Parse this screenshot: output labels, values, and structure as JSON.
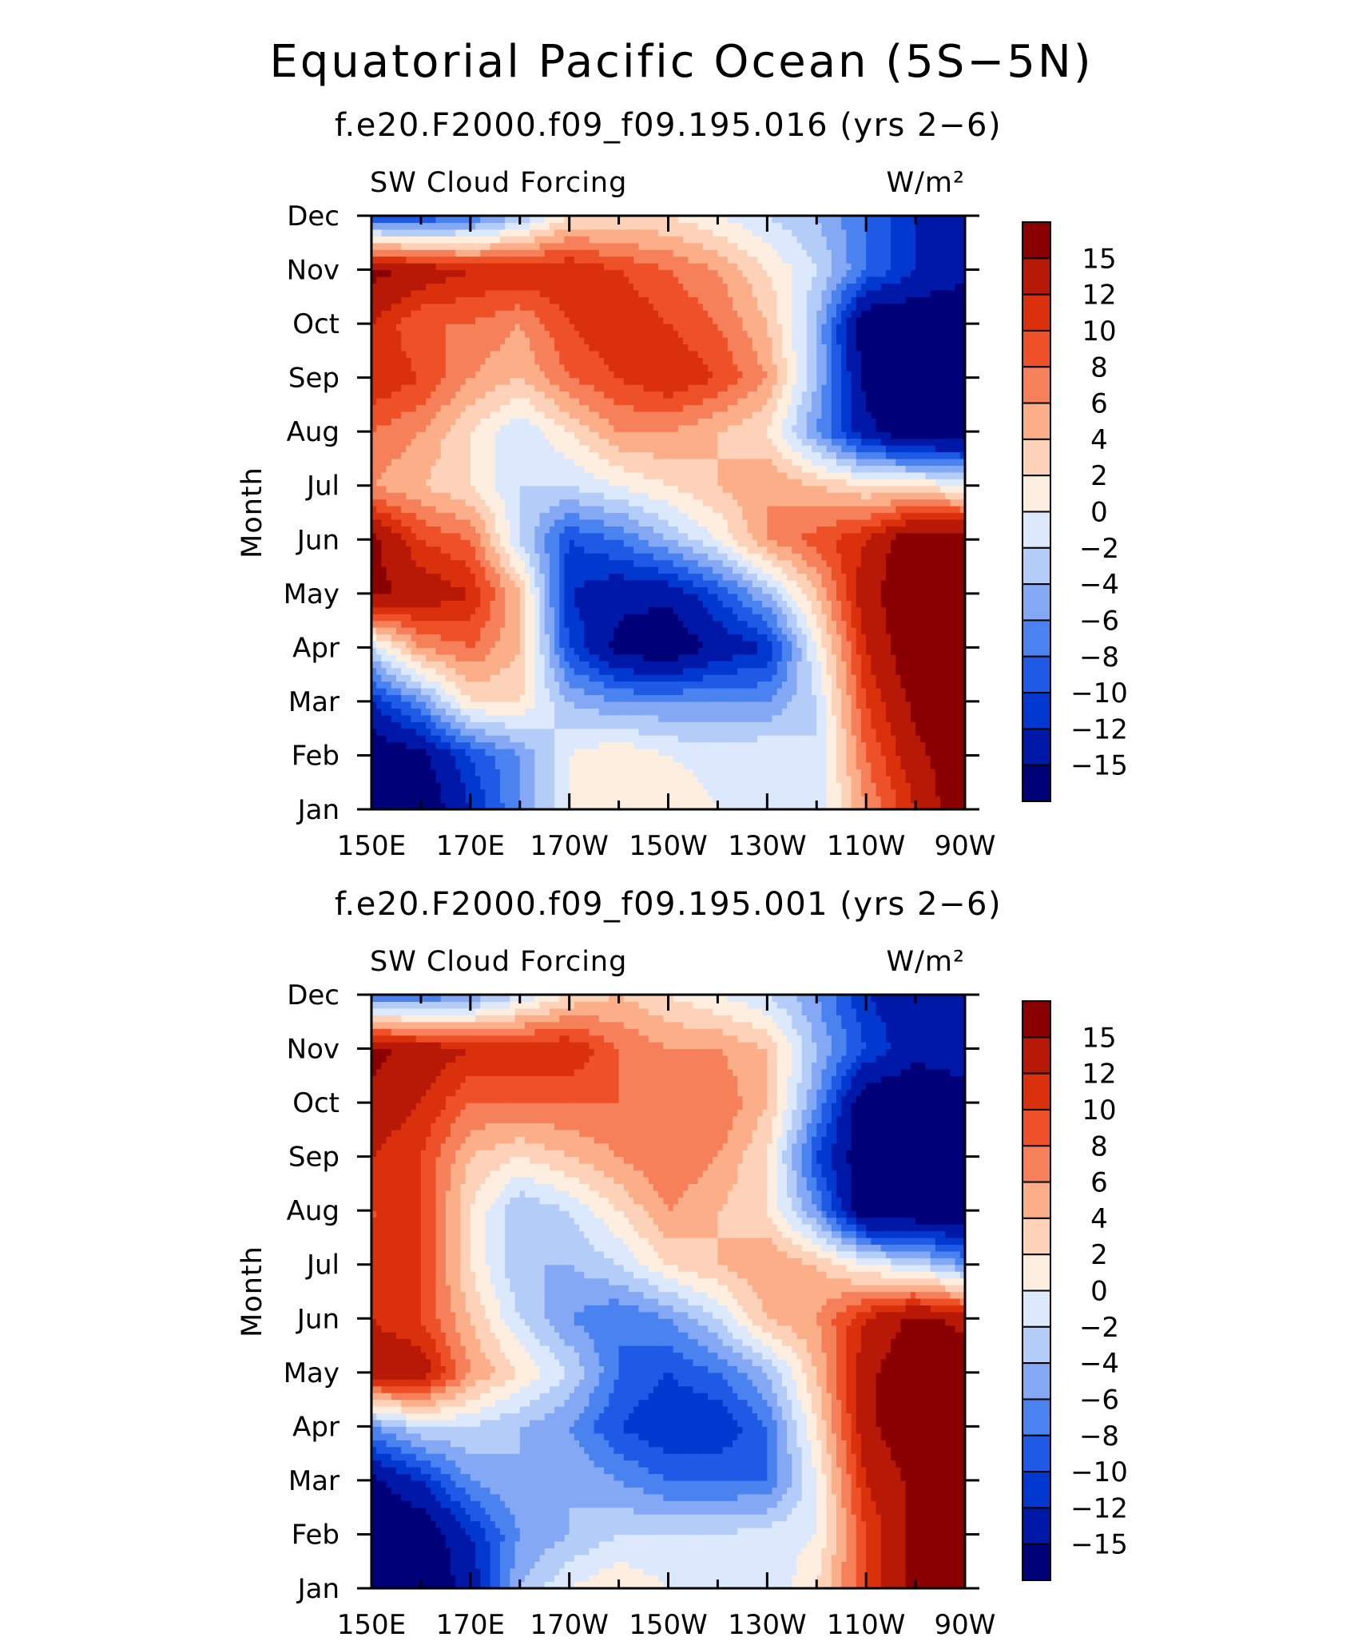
{
  "title": "Equatorial Pacific Ocean (5S−5N)",
  "chart_data": [
    {
      "type": "heatmap",
      "subtitle": "f.e20.F2000.f09_f09.195.016 (yrs 2−6)",
      "variable_label": "SW Cloud Forcing",
      "units_label": "W/m²",
      "ylabel": "Month",
      "xlabel": "",
      "x_ticks": [
        "150E",
        "170E",
        "170W",
        "150W",
        "130W",
        "110W",
        "90W"
      ],
      "y_ticks": [
        "Jan",
        "Feb",
        "Mar",
        "Apr",
        "May",
        "Jun",
        "Jul",
        "Aug",
        "Sep",
        "Oct",
        "Nov",
        "Dec"
      ],
      "xlim": [
        150,
        270
      ],
      "x_units": "degrees east longitude",
      "colorbar_levels": [
        -15,
        -12,
        -10,
        -8,
        -6,
        -4,
        -2,
        0,
        2,
        4,
        6,
        8,
        10,
        12,
        15
      ],
      "colorbar_labels": [
        "15",
        "12",
        "10",
        "8",
        "6",
        "4",
        "2",
        "0",
        "−2",
        "−4",
        "−6",
        "−8",
        "−10",
        "−12",
        "−15"
      ],
      "x": [
        150,
        160,
        170,
        180,
        190,
        200,
        210,
        220,
        230,
        240,
        250,
        260,
        270
      ],
      "y": [
        "Jan",
        "Feb",
        "Mar",
        "Apr",
        "May",
        "Jun",
        "Jul",
        "Aug",
        "Sep",
        "Oct",
        "Nov",
        "Dec"
      ],
      "z": [
        [
          -18,
          -18,
          -12,
          -6,
          0,
          2,
          2,
          0,
          0,
          -2,
          6,
          12,
          18
        ],
        [
          -18,
          -16,
          -10,
          -6,
          0,
          2,
          0,
          -1,
          0,
          -2,
          8,
          14,
          18
        ],
        [
          -12,
          -6,
          2,
          2,
          -4,
          -6,
          -6,
          -6,
          -6,
          -2,
          10,
          16,
          18
        ],
        [
          -2,
          6,
          8,
          4,
          -10,
          -16,
          -18,
          -14,
          -12,
          0,
          12,
          18,
          18
        ],
        [
          16,
          14,
          12,
          4,
          -12,
          -14,
          -14,
          -10,
          -4,
          4,
          14,
          18,
          18
        ],
        [
          16,
          10,
          8,
          -2,
          -10,
          -8,
          -4,
          0,
          6,
          9,
          12,
          18,
          18
        ],
        [
          6,
          4,
          2,
          -2,
          -2,
          0,
          2,
          4,
          6,
          4,
          2,
          2,
          0
        ],
        [
          8,
          6,
          2,
          -2,
          2,
          6,
          6,
          4,
          2,
          -6,
          -14,
          -18,
          -18
        ],
        [
          12,
          10,
          6,
          4,
          8,
          10,
          12,
          10,
          6,
          -4,
          -16,
          -18,
          -18
        ],
        [
          12,
          8,
          8,
          6,
          10,
          12,
          10,
          8,
          4,
          -4,
          -18,
          -18,
          -18
        ],
        [
          16,
          14,
          12,
          12,
          12,
          10,
          8,
          6,
          2,
          -2,
          -8,
          -12,
          -14
        ],
        [
          -10,
          -10,
          -8,
          -4,
          2,
          2,
          2,
          0,
          -2,
          -4,
          -8,
          -12,
          -14
        ]
      ]
    },
    {
      "type": "heatmap",
      "subtitle": "f.e20.F2000.f09_f09.195.001 (yrs 2−6)",
      "variable_label": "SW Cloud Forcing",
      "units_label": "W/m²",
      "ylabel": "Month",
      "xlabel": "",
      "x_ticks": [
        "150E",
        "170E",
        "170W",
        "150W",
        "130W",
        "110W",
        "90W"
      ],
      "y_ticks": [
        "Jan",
        "Feb",
        "Mar",
        "Apr",
        "May",
        "Jun",
        "Jul",
        "Aug",
        "Sep",
        "Oct",
        "Nov",
        "Dec"
      ],
      "xlim": [
        150,
        270
      ],
      "x_units": "degrees east longitude",
      "colorbar_levels": [
        -15,
        -12,
        -10,
        -8,
        -6,
        -4,
        -2,
        0,
        2,
        4,
        6,
        8,
        10,
        12,
        15
      ],
      "colorbar_labels": [
        "15",
        "12",
        "10",
        "8",
        "6",
        "4",
        "2",
        "0",
        "−2",
        "−4",
        "−6",
        "−8",
        "−10",
        "−12",
        "−15"
      ],
      "x": [
        150,
        160,
        170,
        180,
        190,
        200,
        210,
        220,
        230,
        240,
        250,
        260,
        270
      ],
      "y": [
        "Jan",
        "Feb",
        "Mar",
        "Apr",
        "May",
        "Jun",
        "Jul",
        "Aug",
        "Sep",
        "Oct",
        "Nov",
        "Dec"
      ],
      "z": [
        [
          -18,
          -18,
          -14,
          -4,
          0,
          2,
          0,
          -2,
          -2,
          2,
          10,
          16,
          18
        ],
        [
          -18,
          -18,
          -12,
          -6,
          -4,
          -2,
          -2,
          -2,
          -1,
          0,
          10,
          16,
          18
        ],
        [
          -16,
          -12,
          -6,
          -4,
          -4,
          -6,
          -8,
          -8,
          -8,
          0,
          12,
          16,
          18
        ],
        [
          -6,
          -2,
          -2,
          -4,
          -6,
          -10,
          -12,
          -12,
          -8,
          2,
          14,
          18,
          18
        ],
        [
          14,
          14,
          6,
          2,
          -2,
          -8,
          -10,
          -8,
          -4,
          4,
          14,
          18,
          18
        ],
        [
          12,
          10,
          4,
          -2,
          -6,
          -8,
          -6,
          -2,
          4,
          6,
          12,
          16,
          14
        ],
        [
          10,
          10,
          2,
          -4,
          -4,
          -2,
          2,
          4,
          6,
          4,
          0,
          -2,
          -6
        ],
        [
          10,
          10,
          2,
          -4,
          -2,
          2,
          6,
          4,
          2,
          -6,
          -18,
          -18,
          -18
        ],
        [
          12,
          10,
          4,
          2,
          4,
          6,
          8,
          6,
          2,
          -10,
          -18,
          -18,
          -18
        ],
        [
          14,
          12,
          8,
          8,
          8,
          8,
          8,
          8,
          4,
          -6,
          -18,
          -18,
          -18
        ],
        [
          16,
          14,
          12,
          12,
          12,
          8,
          6,
          6,
          4,
          -4,
          -10,
          -14,
          -12
        ],
        [
          -8,
          -8,
          -6,
          -2,
          2,
          4,
          2,
          0,
          -2,
          -6,
          -12,
          -14,
          -14
        ]
      ]
    }
  ],
  "colors": {
    "palette": [
      "#000078",
      "#0018A8",
      "#0038D0",
      "#1E5AE6",
      "#4A82F0",
      "#84A8F4",
      "#B4CCF8",
      "#DCE9FD",
      "#FEEEDF",
      "#FDD2B8",
      "#FCAE88",
      "#F6805A",
      "#EE5028",
      "#DA300C",
      "#B81806",
      "#8A0000"
    ]
  }
}
